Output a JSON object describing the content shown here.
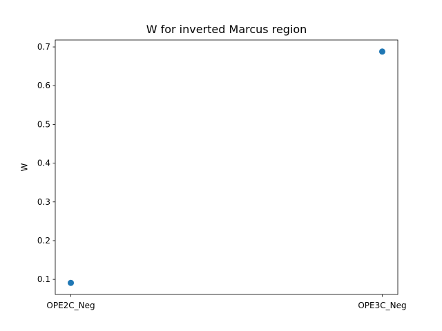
{
  "chart_data": {
    "type": "scatter",
    "title": "W for inverted Marcus region",
    "xlabel": "",
    "ylabel": "W",
    "categories": [
      "OPE2C_Neg",
      "OPE3C_Neg"
    ],
    "values": [
      0.091,
      0.688
    ],
    "yticks": [
      0.1,
      0.2,
      0.3,
      0.4,
      0.5,
      0.6,
      0.7
    ],
    "ytick_labels": [
      "0.1",
      "0.2",
      "0.3",
      "0.4",
      "0.5",
      "0.6",
      "0.7"
    ],
    "ylim": [
      0.0611,
      0.7179
    ],
    "grid": false,
    "color": "#1f77b4"
  }
}
